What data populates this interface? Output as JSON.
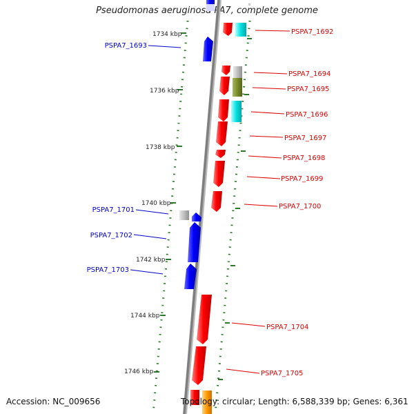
{
  "title": "Pseudomonas aeruginosa PA7, complete genome",
  "footer": {
    "accession": "Accession: NC_009656",
    "summary": "Topology: circular; Length: 6,588,339 bp; Genes: 6,361"
  },
  "colors": {
    "forward_gene": "#ff0000",
    "reverse_gene": "#0000ff",
    "label_forward": "#dd0000",
    "label_reverse": "#0000cc",
    "tick": "#2a7a2a",
    "backbone": "#888888"
  },
  "kbp_ticks": [
    "1734 kbp",
    "1736 kbp",
    "1738 kbp",
    "1740 kbp",
    "1742 kbp",
    "1744 kbp",
    "1746 kbp"
  ],
  "gene_labels_right": [
    "PSPA7_1692",
    "PSPA7_1694",
    "PSPA7_1695",
    "PSPA7_1696",
    "PSPA7_1697",
    "PSPA7_1698",
    "PSPA7_1699",
    "PSPA7_1700",
    "PSPA7_1704",
    "PSPA7_1705"
  ],
  "gene_labels_left": [
    "PSPA7_1693",
    "PSPA7_1701",
    "PSPA7_1702",
    "PSPA7_1703"
  ]
}
